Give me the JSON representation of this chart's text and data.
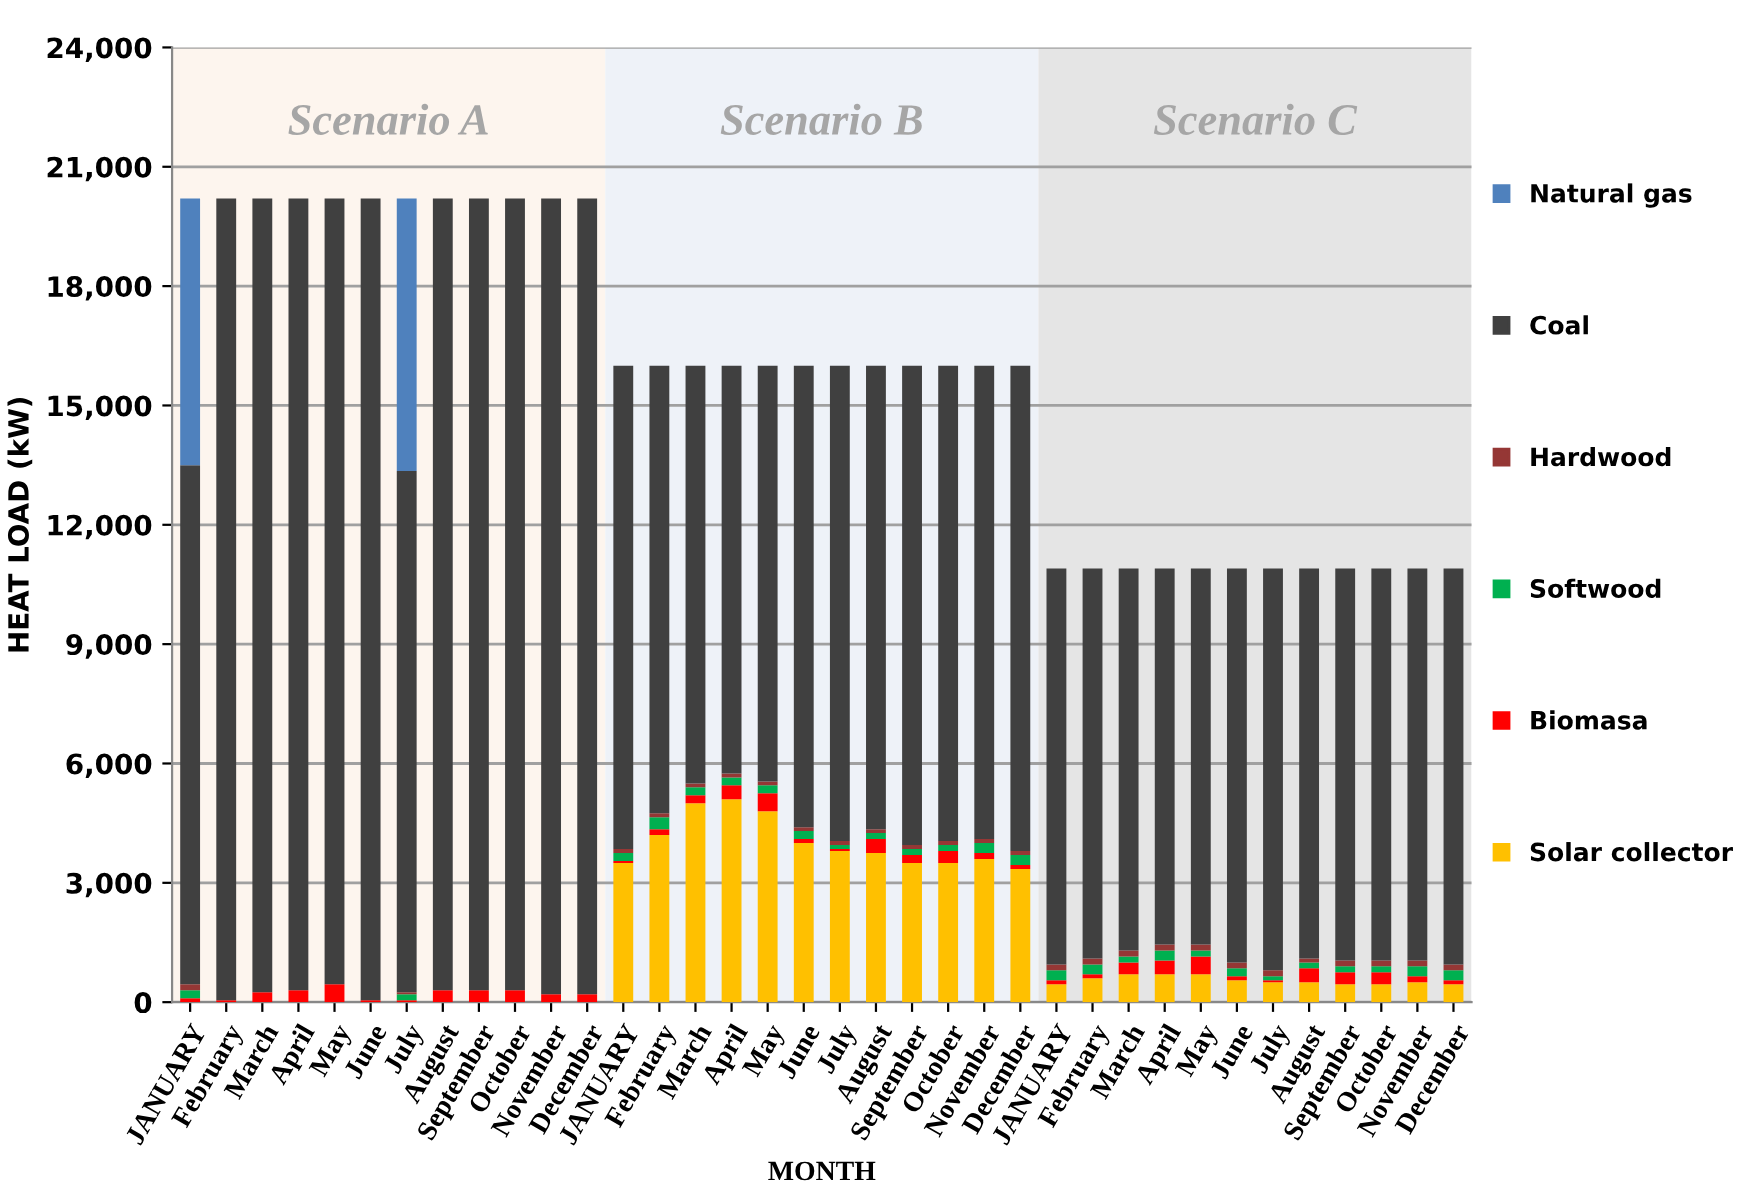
{
  "chart_data": {
    "type": "bar",
    "stacked": true,
    "xlabel": "MONTH",
    "ylabel": "HEAT LOAD (kW)",
    "categories": [
      "JANUARY",
      "February",
      "March",
      "April",
      "May",
      "June",
      "July",
      "August",
      "September",
      "October",
      "November",
      "December",
      "JANUARY",
      "February",
      "March",
      "April",
      "May",
      "June",
      "July",
      "August",
      "September",
      "October",
      "November",
      "December",
      "JANUARY",
      "February",
      "March",
      "April",
      "May",
      "June",
      "July",
      "August",
      "September",
      "October",
      "November",
      "December"
    ],
    "series": [
      {
        "name": "Solar collector",
        "color": "#ffc000",
        "values": [
          0,
          0,
          0,
          0,
          0,
          0,
          0,
          0,
          0,
          0,
          0,
          0,
          3500,
          4200,
          5000,
          5100,
          4800,
          4000,
          3800,
          3750,
          3500,
          3500,
          3600,
          3350,
          450,
          600,
          700,
          700,
          700,
          550,
          500,
          500,
          450,
          450,
          500,
          450
        ]
      },
      {
        "name": "Biomasa",
        "color": "#ff0000",
        "values": [
          100,
          50,
          250,
          300,
          450,
          50,
          50,
          300,
          300,
          300,
          200,
          200,
          50,
          150,
          200,
          350,
          450,
          100,
          50,
          350,
          200,
          300,
          150,
          100,
          100,
          100,
          300,
          350,
          450,
          100,
          50,
          350,
          300,
          300,
          150,
          100
        ]
      },
      {
        "name": "Softwood",
        "color": "#00b050",
        "values": [
          200,
          0,
          0,
          0,
          0,
          0,
          150,
          0,
          0,
          0,
          0,
          0,
          200,
          300,
          200,
          200,
          200,
          200,
          100,
          150,
          150,
          150,
          250,
          250,
          250,
          250,
          150,
          250,
          150,
          200,
          100,
          150,
          150,
          150,
          250,
          250
        ]
      },
      {
        "name": "Hardwood",
        "color": "#953735",
        "values": [
          150,
          0,
          0,
          0,
          0,
          0,
          50,
          0,
          0,
          0,
          0,
          0,
          100,
          100,
          100,
          100,
          100,
          100,
          100,
          100,
          100,
          100,
          100,
          100,
          150,
          150,
          150,
          150,
          150,
          150,
          150,
          100,
          150,
          150,
          150,
          150
        ]
      },
      {
        "name": "Coal",
        "color": "#404040",
        "values": [
          13050,
          20150,
          19950,
          19900,
          19750,
          20150,
          13100,
          19900,
          19900,
          19900,
          20000,
          20000,
          12150,
          11250,
          10500,
          10250,
          10450,
          11600,
          11950,
          11650,
          12050,
          11950,
          11900,
          12200,
          9950,
          9800,
          9600,
          9450,
          9450,
          9900,
          10100,
          9800,
          9850,
          9850,
          9850,
          9950
        ]
      },
      {
        "name": "Natural gas",
        "color": "#4f81bd",
        "values": [
          6700,
          0,
          0,
          0,
          0,
          0,
          6850,
          0,
          0,
          0,
          0,
          0,
          0,
          0,
          0,
          0,
          0,
          0,
          0,
          0,
          0,
          0,
          0,
          0,
          0,
          0,
          0,
          0,
          0,
          0,
          0,
          0,
          0,
          0,
          0,
          0
        ]
      }
    ],
    "ylim": [
      0,
      24000
    ],
    "yticks": [
      0,
      {
        "value": 3000,
        "label": "3,000"
      },
      {
        "value": 6000,
        "label": "6,000"
      },
      {
        "value": 9000,
        "label": "9,000"
      },
      {
        "value": 12000,
        "label": "12,000"
      },
      {
        "value": 15000,
        "label": "15,000"
      },
      {
        "value": 18000,
        "label": "18,000"
      },
      {
        "value": 21000,
        "label": "21,000"
      },
      {
        "value": 24000,
        "label": "24,000"
      }
    ],
    "annotations": [
      "Scenario A",
      "Scenario B",
      "Scenario C"
    ],
    "grid": "y",
    "legend": "right"
  }
}
